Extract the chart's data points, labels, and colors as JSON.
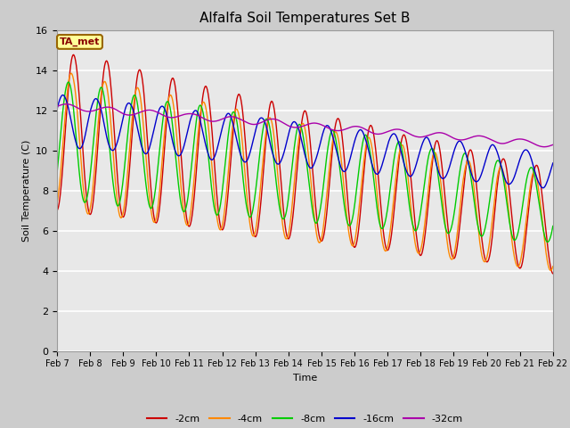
{
  "title": "Alfalfa Soil Temperatures Set B",
  "xlabel": "Time",
  "ylabel": "Soil Temperature (C)",
  "ylim": [
    0,
    16
  ],
  "yticks": [
    0,
    2,
    4,
    6,
    8,
    10,
    12,
    14,
    16
  ],
  "annotation_text": "TA_met",
  "annotation_bg": "#ffff99",
  "annotation_border": "#996600",
  "annotation_text_color": "#880000",
  "series": {
    "-2cm": {
      "color": "#cc0000",
      "lw": 1.0
    },
    "-4cm": {
      "color": "#ff8800",
      "lw": 1.0
    },
    "-8cm": {
      "color": "#00cc00",
      "lw": 1.0
    },
    "-16cm": {
      "color": "#0000cc",
      "lw": 1.0
    },
    "-32cm": {
      "color": "#aa00aa",
      "lw": 1.0
    }
  },
  "legend_order": [
    "-2cm",
    "-4cm",
    "-8cm",
    "-16cm",
    "-32cm"
  ],
  "xtick_labels": [
    "Feb 7",
    "Feb 8",
    "Feb 9",
    "Feb 10",
    "Feb 11",
    "Feb 12",
    "Feb 13",
    "Feb 14",
    "Feb 15",
    "Feb 16",
    "Feb 17",
    "Feb 18",
    "Feb 19",
    "Feb 20",
    "Feb 21",
    "Feb 22"
  ]
}
